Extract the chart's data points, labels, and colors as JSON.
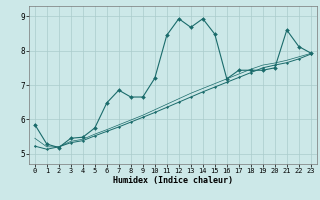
{
  "xlabel": "Humidex (Indice chaleur)",
  "xlim": [
    -0.5,
    23.5
  ],
  "ylim": [
    4.7,
    9.3
  ],
  "xticks": [
    0,
    1,
    2,
    3,
    4,
    5,
    6,
    7,
    8,
    9,
    10,
    11,
    12,
    13,
    14,
    15,
    16,
    17,
    18,
    19,
    20,
    21,
    22,
    23
  ],
  "yticks": [
    5,
    6,
    7,
    8,
    9
  ],
  "bg_color": "#cce8e8",
  "grid_color": "#aacccc",
  "line_color": "#1a6b6b",
  "series1_x": [
    0,
    1,
    2,
    3,
    4,
    5,
    6,
    7,
    8,
    9,
    10,
    11,
    12,
    13,
    14,
    15,
    16,
    17,
    18,
    19,
    20,
    21,
    22,
    23
  ],
  "series1_y": [
    5.85,
    5.28,
    5.18,
    5.45,
    5.48,
    5.75,
    6.48,
    6.85,
    6.65,
    6.65,
    7.2,
    8.45,
    8.93,
    8.68,
    8.93,
    8.48,
    7.18,
    7.43,
    7.43,
    7.43,
    7.5,
    8.6,
    8.12,
    7.93
  ],
  "series2_x": [
    0,
    1,
    2,
    3,
    4,
    5,
    6,
    7,
    8,
    9,
    10,
    11,
    12,
    13,
    14,
    15,
    16,
    17,
    18,
    19,
    20,
    21,
    22,
    23
  ],
  "series2_y": [
    5.22,
    5.13,
    5.2,
    5.32,
    5.38,
    5.52,
    5.65,
    5.78,
    5.92,
    6.06,
    6.2,
    6.35,
    6.5,
    6.65,
    6.8,
    6.94,
    7.08,
    7.22,
    7.36,
    7.5,
    7.58,
    7.65,
    7.76,
    7.9
  ],
  "series3_x": [
    0,
    1,
    2,
    3,
    4,
    5,
    6,
    7,
    8,
    9,
    10,
    11,
    12,
    13,
    14,
    15,
    16,
    17,
    18,
    19,
    20,
    21,
    22,
    23
  ],
  "series3_y": [
    5.45,
    5.2,
    5.2,
    5.36,
    5.42,
    5.57,
    5.7,
    5.84,
    5.98,
    6.12,
    6.28,
    6.44,
    6.6,
    6.76,
    6.9,
    7.04,
    7.18,
    7.32,
    7.46,
    7.58,
    7.64,
    7.72,
    7.82,
    7.92
  ]
}
